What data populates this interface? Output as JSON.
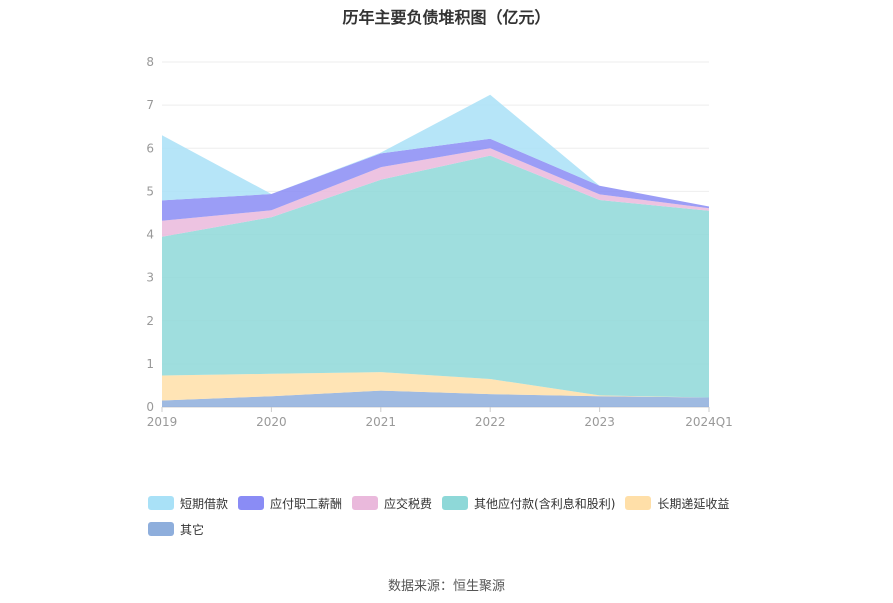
{
  "title": "历年主要负债堆积图（亿元）",
  "source": "数据来源：恒生聚源",
  "chart_data": {
    "type": "area",
    "stacked": true,
    "categories": [
      "2019",
      "2020",
      "2021",
      "2022",
      "2023",
      "2024Q1"
    ],
    "ylim": [
      0,
      8
    ],
    "yticks": [
      "0",
      "1",
      "2",
      "3",
      "4",
      "5",
      "6",
      "7",
      "8"
    ],
    "grid": true,
    "legend_position": "bottom",
    "series": [
      {
        "name": "其它",
        "color": "#8eaedc",
        "values": [
          0.15,
          0.25,
          0.38,
          0.3,
          0.25,
          0.22
        ]
      },
      {
        "name": "长期递延收益",
        "color": "#ffdfa8",
        "values": [
          0.58,
          0.52,
          0.43,
          0.35,
          0.02,
          0.0
        ]
      },
      {
        "name": "其他应付款(含利息和股利)",
        "color": "#8ed8d8",
        "values": [
          3.22,
          3.63,
          4.46,
          5.18,
          4.53,
          4.33
        ]
      },
      {
        "name": "应交税费",
        "color": "#eab9dc",
        "values": [
          0.37,
          0.16,
          0.29,
          0.17,
          0.13,
          0.06
        ]
      },
      {
        "name": "应付职工薪酬",
        "color": "#8a8cf5",
        "values": [
          0.47,
          0.38,
          0.32,
          0.22,
          0.2,
          0.04
        ]
      },
      {
        "name": "短期借款",
        "color": "#a9e1f7",
        "values": [
          1.51,
          0.0,
          0.02,
          1.02,
          0.0,
          0.0
        ]
      }
    ]
  },
  "legend_order": [
    "短期借款",
    "应付职工薪酬",
    "应交税费",
    "其他应付款(含利息和股利)",
    "长期递延收益",
    "其它"
  ]
}
